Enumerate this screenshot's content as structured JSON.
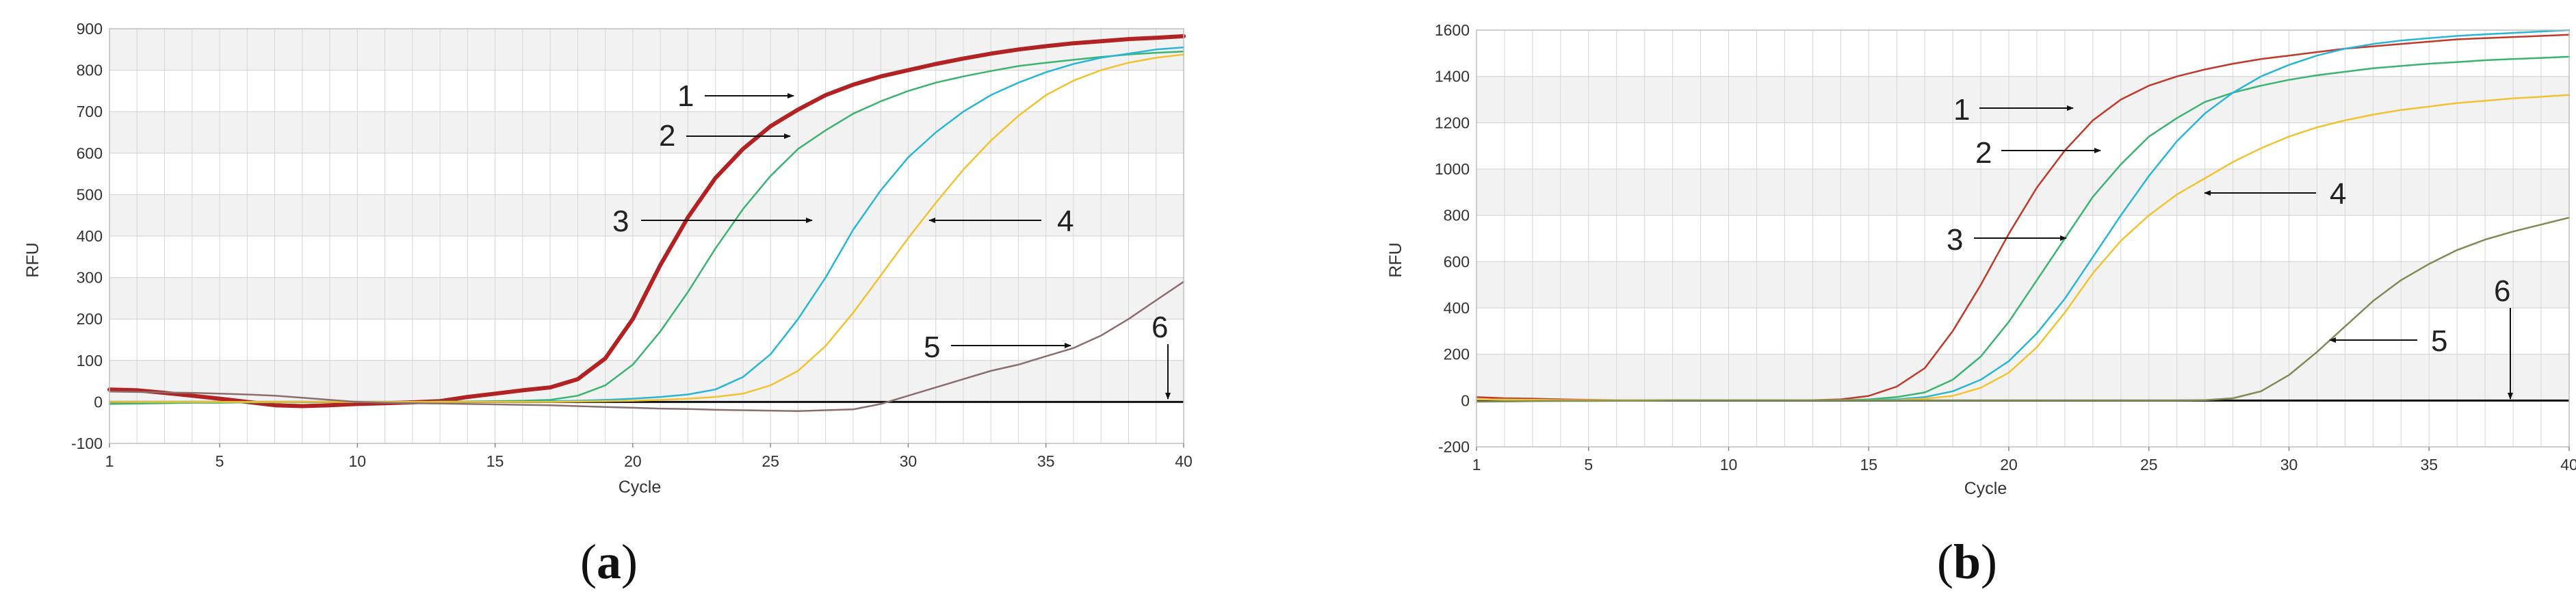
{
  "chart_data": [
    {
      "type": "line",
      "panel_label": "(a)",
      "panel_letter": "a",
      "xlabel": "Cycle",
      "ylabel": "RFU",
      "xlim": [
        1,
        40
      ],
      "ylim": [
        -100,
        900
      ],
      "xticks": [
        1,
        5,
        10,
        15,
        20,
        25,
        30,
        35,
        40
      ],
      "yticks": [
        -100,
        0,
        100,
        200,
        300,
        400,
        500,
        600,
        700,
        800,
        900
      ],
      "grid": true,
      "threshold": 0,
      "x": [
        1,
        2,
        3,
        4,
        5,
        6,
        7,
        8,
        9,
        10,
        11,
        12,
        13,
        14,
        15,
        16,
        17,
        18,
        19,
        20,
        21,
        22,
        23,
        24,
        25,
        26,
        27,
        28,
        29,
        30,
        31,
        32,
        33,
        34,
        35,
        36,
        37,
        38,
        39,
        40
      ],
      "series": [
        {
          "color": "#b22222",
          "width": 6,
          "values": [
            30,
            28,
            22,
            15,
            8,
            0,
            -8,
            -10,
            -8,
            -5,
            -3,
            -1,
            2,
            12,
            20,
            28,
            35,
            55,
            105,
            200,
            330,
            445,
            540,
            610,
            665,
            705,
            740,
            765,
            785,
            800,
            815,
            828,
            840,
            850,
            858,
            865,
            870,
            875,
            878,
            882
          ]
        },
        {
          "color": "#3cb371",
          "width": 2.5,
          "values": [
            -5,
            -4,
            -3,
            -2,
            -2,
            -1,
            -1,
            0,
            0,
            0,
            0,
            0,
            1,
            1,
            2,
            3,
            5,
            15,
            40,
            90,
            170,
            265,
            370,
            465,
            545,
            610,
            655,
            695,
            725,
            750,
            770,
            785,
            798,
            810,
            818,
            825,
            832,
            838,
            842,
            845
          ]
        },
        {
          "color": "#29b6d6",
          "width": 2.5,
          "values": [
            0,
            0,
            0,
            0,
            0,
            0,
            0,
            0,
            0,
            0,
            0,
            0,
            0,
            0,
            0,
            0,
            2,
            3,
            5,
            8,
            12,
            18,
            30,
            60,
            115,
            200,
            300,
            415,
            510,
            590,
            650,
            700,
            740,
            770,
            795,
            815,
            830,
            840,
            850,
            855
          ]
        },
        {
          "color": "#f2c230",
          "width": 2.5,
          "values": [
            0,
            0,
            0,
            0,
            0,
            0,
            0,
            0,
            0,
            0,
            0,
            0,
            0,
            0,
            0,
            0,
            0,
            1,
            2,
            3,
            5,
            8,
            12,
            20,
            40,
            75,
            135,
            215,
            305,
            395,
            480,
            560,
            630,
            690,
            740,
            775,
            800,
            818,
            830,
            838
          ]
        },
        {
          "color": "#8b6e6e",
          "width": 2.5,
          "values": [
            25,
            24,
            23,
            22,
            20,
            18,
            15,
            10,
            5,
            0,
            -2,
            -3,
            -4,
            -5,
            -6,
            -7,
            -8,
            -10,
            -12,
            -14,
            -16,
            -17,
            -19,
            -20,
            -21,
            -22,
            -20,
            -18,
            -5,
            15,
            35,
            55,
            75,
            90,
            110,
            130,
            160,
            200,
            245,
            290
          ]
        }
      ],
      "annotations": [
        "1",
        "2",
        "3",
        "4",
        "5",
        "6"
      ]
    },
    {
      "type": "line",
      "panel_label": "(b)",
      "panel_letter": "b",
      "xlabel": "Cycle",
      "ylabel": "RFU",
      "xlim": [
        1,
        40
      ],
      "ylim": [
        -200,
        1600
      ],
      "xticks": [
        1,
        5,
        10,
        15,
        20,
        25,
        30,
        35,
        40
      ],
      "yticks": [
        -200,
        0,
        200,
        400,
        600,
        800,
        1000,
        1200,
        1400,
        1600
      ],
      "grid": true,
      "threshold": 0,
      "x": [
        1,
        2,
        3,
        4,
        5,
        6,
        7,
        8,
        9,
        10,
        11,
        12,
        13,
        14,
        15,
        16,
        17,
        18,
        19,
        20,
        21,
        22,
        23,
        24,
        25,
        26,
        27,
        28,
        29,
        30,
        31,
        32,
        33,
        34,
        35,
        36,
        37,
        38,
        39,
        40
      ],
      "series": [
        {
          "color": "#c0392b",
          "width": 2.5,
          "values": [
            15,
            10,
            8,
            5,
            3,
            2,
            1,
            1,
            1,
            1,
            1,
            1,
            2,
            5,
            20,
            60,
            140,
            300,
            500,
            720,
            920,
            1080,
            1210,
            1300,
            1360,
            1400,
            1430,
            1455,
            1475,
            1490,
            1505,
            1520,
            1530,
            1540,
            1550,
            1560,
            1565,
            1570,
            1575,
            1580
          ]
        },
        {
          "color": "#3cb371",
          "width": 2.5,
          "values": [
            5,
            4,
            3,
            2,
            2,
            1,
            1,
            1,
            1,
            1,
            1,
            1,
            1,
            2,
            5,
            15,
            35,
            90,
            190,
            340,
            520,
            700,
            880,
            1020,
            1140,
            1220,
            1290,
            1330,
            1360,
            1385,
            1405,
            1420,
            1435,
            1445,
            1455,
            1462,
            1470,
            1475,
            1480,
            1485
          ]
        },
        {
          "color": "#29b6d6",
          "width": 2.5,
          "values": [
            5,
            4,
            3,
            2,
            2,
            1,
            1,
            1,
            1,
            1,
            1,
            1,
            1,
            1,
            2,
            5,
            15,
            40,
            90,
            170,
            290,
            440,
            620,
            800,
            970,
            1120,
            1240,
            1330,
            1400,
            1450,
            1490,
            1520,
            1540,
            1555,
            1565,
            1575,
            1582,
            1588,
            1594,
            1600
          ]
        },
        {
          "color": "#f2c230",
          "width": 2.5,
          "values": [
            5,
            4,
            3,
            2,
            2,
            1,
            1,
            1,
            1,
            1,
            1,
            1,
            1,
            1,
            1,
            2,
            8,
            20,
            55,
            120,
            230,
            380,
            550,
            690,
            800,
            890,
            960,
            1030,
            1090,
            1140,
            1180,
            1210,
            1235,
            1255,
            1270,
            1285,
            1295,
            1305,
            1312,
            1320
          ]
        },
        {
          "color": "#7d8c55",
          "width": 2.5,
          "values": [
            -5,
            -4,
            -3,
            -2,
            -2,
            -1,
            -1,
            0,
            0,
            0,
            0,
            0,
            0,
            0,
            0,
            0,
            0,
            0,
            0,
            0,
            0,
            0,
            0,
            0,
            0,
            0,
            2,
            10,
            40,
            110,
            210,
            320,
            430,
            520,
            590,
            650,
            695,
            730,
            760,
            790
          ]
        }
      ],
      "annotations": [
        "1",
        "2",
        "3",
        "4",
        "5",
        "6"
      ]
    }
  ]
}
